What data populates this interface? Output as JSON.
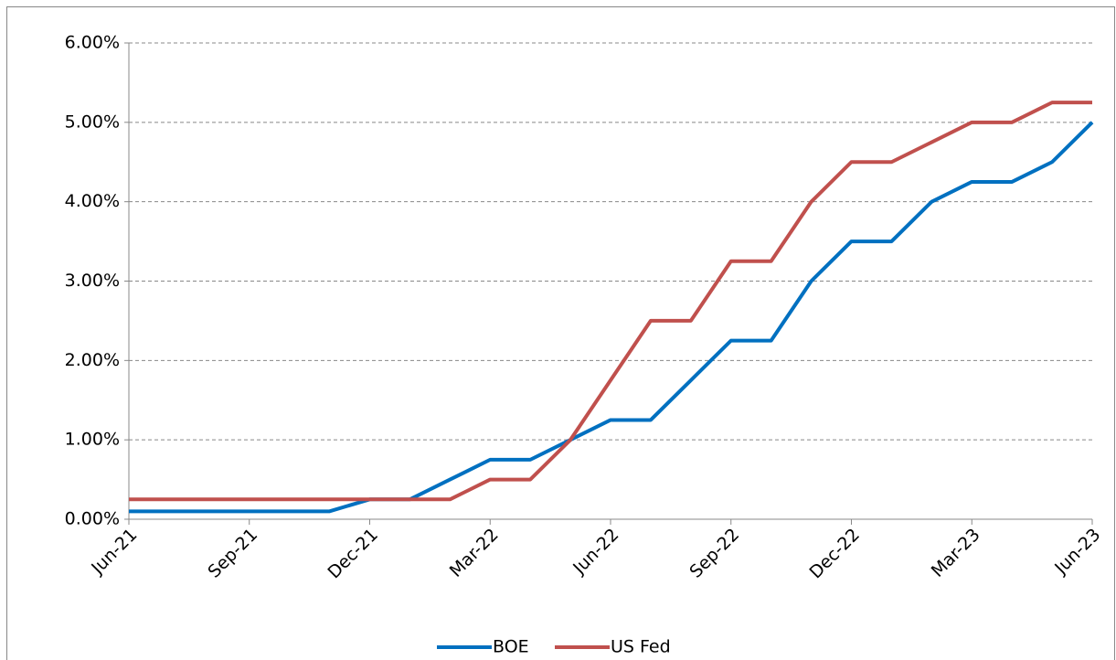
{
  "chart_data": {
    "type": "line",
    "categories": [
      "Jun-21",
      null,
      null,
      "Sep-21",
      null,
      null,
      "Dec-21",
      null,
      null,
      "Mar-22",
      null,
      null,
      "Jun-22",
      null,
      null,
      "Sep-22",
      null,
      null,
      "Dec-22",
      null,
      null,
      "Mar-23",
      null,
      null,
      "Jun-23"
    ],
    "series": [
      {
        "name": "BOE",
        "color": "#0070c0",
        "values": [
          0.1,
          0.1,
          0.1,
          0.1,
          0.1,
          0.1,
          0.25,
          0.25,
          0.5,
          0.75,
          0.75,
          1.0,
          1.25,
          1.25,
          1.75,
          2.25,
          2.25,
          3.0,
          3.5,
          3.5,
          4.0,
          4.25,
          4.25,
          4.5,
          5.0
        ]
      },
      {
        "name": "US Fed",
        "color": "#c0504d",
        "values": [
          0.25,
          0.25,
          0.25,
          0.25,
          0.25,
          0.25,
          0.25,
          0.25,
          0.25,
          0.5,
          0.5,
          1.0,
          1.75,
          2.5,
          2.5,
          3.25,
          3.25,
          4.0,
          4.5,
          4.5,
          4.75,
          5.0,
          5.0,
          5.25,
          5.25
        ]
      }
    ],
    "ylim": [
      0,
      6
    ],
    "yticks": [
      {
        "value": 0,
        "label": "0.00%"
      },
      {
        "value": 1,
        "label": "1.00%"
      },
      {
        "value": 2,
        "label": "2.00%"
      },
      {
        "value": 3,
        "label": "3.00%"
      },
      {
        "value": 4,
        "label": "4.00%"
      },
      {
        "value": 5,
        "label": "5.00%"
      },
      {
        "value": 6,
        "label": "6.00%"
      }
    ],
    "grid": true,
    "legend": "bottom"
  }
}
